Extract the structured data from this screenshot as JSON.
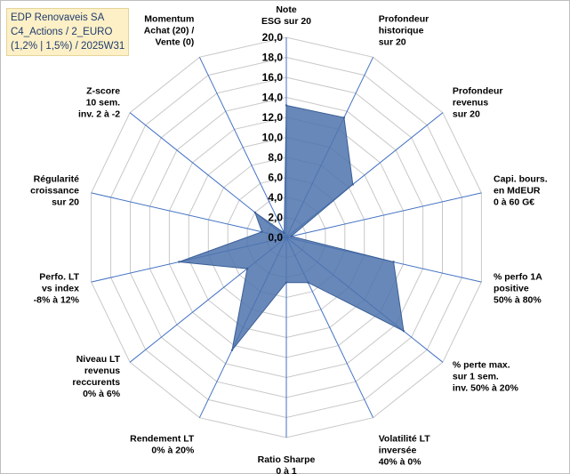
{
  "chart_data": {
    "type": "radar",
    "title_lines": [
      "EDP Renovaveis SA",
      "C4_Actions / 2_EURO",
      "(1,2% | 1,5%) / 2025W31"
    ],
    "rmin": 0,
    "rmax": 20,
    "tick_labels": [
      "0,0",
      "2,0",
      "4,0",
      "6,0",
      "8,0",
      "10,0",
      "12,0",
      "14,0",
      "16,0",
      "18,0",
      "20,0"
    ],
    "axes": [
      {
        "lines": [
          "Note",
          "ESG sur 20"
        ],
        "value": 13.2
      },
      {
        "lines": [
          "Profondeur",
          "historique",
          "sur 20"
        ],
        "value": 13.3
      },
      {
        "lines": [
          "Profondeur",
          "revenus",
          "sur 20"
        ],
        "value": 8.5
      },
      {
        "lines": [
          "Capi. bours.",
          "en MdEUR",
          "0 à 60 G€"
        ],
        "value": 0.5
      },
      {
        "lines": [
          "% perfo 1A",
          "positive",
          "50% à 80%"
        ],
        "value": 11.0
      },
      {
        "lines": [
          "% perte max.",
          "sur 1 sem.",
          "inv. 50% à 20%"
        ],
        "value": 15.0
      },
      {
        "lines": [
          "Volatilité LT",
          "inversée",
          "40% à 0%"
        ],
        "value": 5.0
      },
      {
        "lines": [
          "Ratio Sharpe",
          "0 à 1"
        ],
        "value": 4.5
      },
      {
        "lines": [
          "Rendement LT",
          "0% à 20%"
        ],
        "value": 12.5
      },
      {
        "lines": [
          "Niveau LT",
          "revenus",
          "reccurents",
          "0% à 6%"
        ],
        "value": 5.0
      },
      {
        "lines": [
          "Perfo. LT",
          "vs index",
          "-8% à 12%"
        ],
        "value": 11.0
      },
      {
        "lines": [
          "Régularité",
          "croissance",
          "sur 20"
        ],
        "value": 2.5
      },
      {
        "lines": [
          "Z-score",
          "10 sem.",
          "inv. 2 à -2"
        ],
        "value": 4.0
      },
      {
        "lines": [
          "Momentum",
          "Achat (20) /",
          "Vente (0)"
        ],
        "value": 0.5
      }
    ],
    "colors": {
      "fill": "#4d73ad",
      "stroke": "#3a5f96",
      "grid": "#c8c8c8",
      "spoke": "#4472c4"
    }
  }
}
